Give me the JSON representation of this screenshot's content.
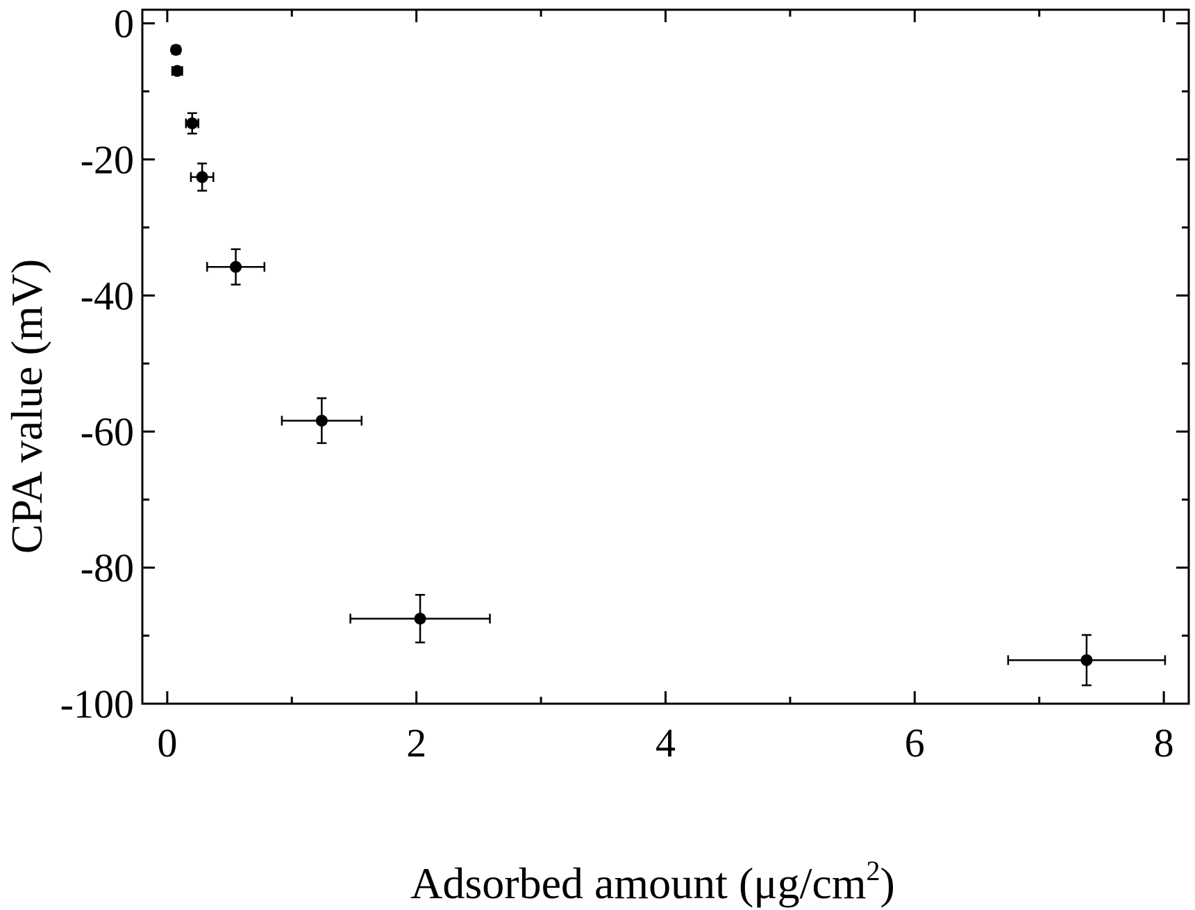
{
  "chart_data": {
    "type": "scatter",
    "xlabel": "Adsorbed amount (μg/cm",
    "xlabel_superscript": "2",
    "xlabel_suffix": ")",
    "ylabel": "CPA value (mV)",
    "xlim": [
      -0.2,
      8.2
    ],
    "ylim": [
      -100,
      2
    ],
    "x_ticks": [
      0,
      2,
      4,
      6,
      8
    ],
    "x_tick_labels": [
      "0",
      "2",
      "4",
      "6",
      "8"
    ],
    "x_minor_ticks": [
      1,
      3,
      5,
      7
    ],
    "y_ticks": [
      0,
      -20,
      -40,
      -60,
      -80,
      -100
    ],
    "y_tick_labels": [
      "0",
      "-20",
      "-40",
      "-60",
      "-80",
      "-100"
    ],
    "y_minor_ticks": [
      -10,
      -30,
      -50,
      -70,
      -90
    ],
    "grid": false,
    "series": [
      {
        "marker": "filled-circle",
        "color": "#000000",
        "points": [
          {
            "x": 0.07,
            "y": -3.9,
            "xerr": 0.03,
            "yerr": 0.4
          },
          {
            "x": 0.08,
            "y": -7.0,
            "xerr": 0.04,
            "yerr": 0.5
          },
          {
            "x": 0.2,
            "y": -14.7,
            "xerr": 0.05,
            "yerr": 1.5
          },
          {
            "x": 0.28,
            "y": -22.6,
            "xerr": 0.09,
            "yerr": 2.0
          },
          {
            "x": 0.55,
            "y": -35.8,
            "xerr": 0.23,
            "yerr": 2.6
          },
          {
            "x": 1.24,
            "y": -58.4,
            "xerr": 0.32,
            "yerr": 3.3
          },
          {
            "x": 2.03,
            "y": -87.5,
            "xerr": 0.56,
            "yerr": 3.5
          },
          {
            "x": 7.38,
            "y": -93.6,
            "xerr": 0.63,
            "yerr": 3.7
          }
        ]
      }
    ]
  }
}
